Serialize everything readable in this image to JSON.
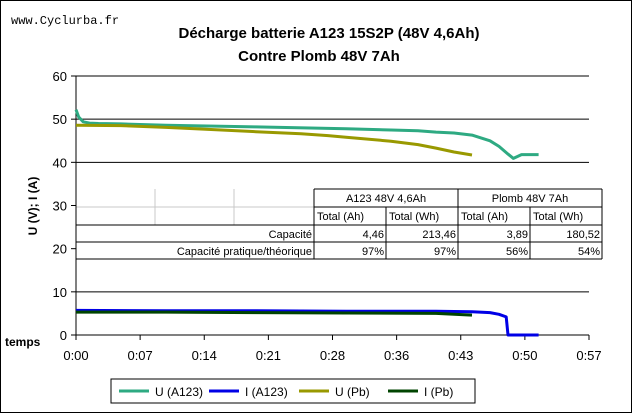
{
  "watermark": "www.Cyclurba.fr",
  "chart_data": {
    "type": "line",
    "title": [
      "Décharge batterie A123 15S2P (48V 4,6Ah)",
      "Contre Plomb 48V 7Ah"
    ],
    "ylabel": "U (V); I (A)",
    "xlabel": "temps",
    "ylim": [
      0,
      60
    ],
    "yticks": [
      "0",
      "10",
      "20",
      "30",
      "40",
      "50",
      "60"
    ],
    "xticks": [
      "0:00",
      "0:07",
      "0:14",
      "0:21",
      "0:28",
      "0:36",
      "0:43",
      "0:50",
      "0:57"
    ],
    "x_unit": "minutes",
    "gridlines": "horizontal",
    "legend_position": "bottom",
    "series": [
      {
        "name": "U (A123)",
        "color": "#2eaa82",
        "x": [
          0,
          0.3,
          0.8,
          1.5,
          2.5,
          5,
          10,
          20,
          30,
          35,
          38,
          40,
          42,
          44,
          46,
          47,
          48,
          48.6,
          49.5,
          51.4
        ],
        "y": [
          52.2,
          50.5,
          49.4,
          49.1,
          49.0,
          48.9,
          48.6,
          48.2,
          47.8,
          47.5,
          47.3,
          47.0,
          46.8,
          46.3,
          45.0,
          43.7,
          41.9,
          40.9,
          41.8,
          41.8
        ]
      },
      {
        "name": "I (A123)",
        "color": "#0000e6",
        "x": [
          0,
          10,
          20,
          30,
          40,
          44,
          46,
          47,
          47.8,
          48,
          48.2,
          49.3,
          49.5,
          51.4
        ],
        "y": [
          5.7,
          5.6,
          5.6,
          5.5,
          5.5,
          5.4,
          5.2,
          4.8,
          4.2,
          0,
          0,
          0,
          0,
          0
        ]
      },
      {
        "name": "U (Pb)",
        "color": "#999900",
        "x": [
          0,
          5,
          10,
          15,
          20,
          25,
          28,
          30,
          35,
          38,
          40,
          42,
          44
        ],
        "y": [
          48.6,
          48.5,
          48.1,
          47.6,
          47.1,
          46.6,
          46.2,
          45.8,
          44.9,
          44.1,
          43.3,
          42.4,
          41.7
        ]
      },
      {
        "name": "I (Pb)",
        "color": "#004400",
        "x": [
          0,
          10,
          20,
          30,
          40,
          44
        ],
        "y": [
          5.3,
          5.3,
          5.2,
          5.1,
          5.0,
          4.6
        ]
      }
    ],
    "table": {
      "groups": [
        "A123 48V 4,6Ah",
        "Plomb 48V 7Ah"
      ],
      "subheaders": [
        "Total (Ah)",
        "Total (Wh)",
        "Total (Ah)",
        "Total (Wh)"
      ],
      "rows": [
        {
          "label": "Capacité",
          "values": [
            "4,46",
            "213,46",
            "3,89",
            "180,52"
          ]
        },
        {
          "label": "Capacité pratique/théorique",
          "values": [
            "97%",
            "97%",
            "56%",
            "54%"
          ]
        }
      ]
    }
  }
}
